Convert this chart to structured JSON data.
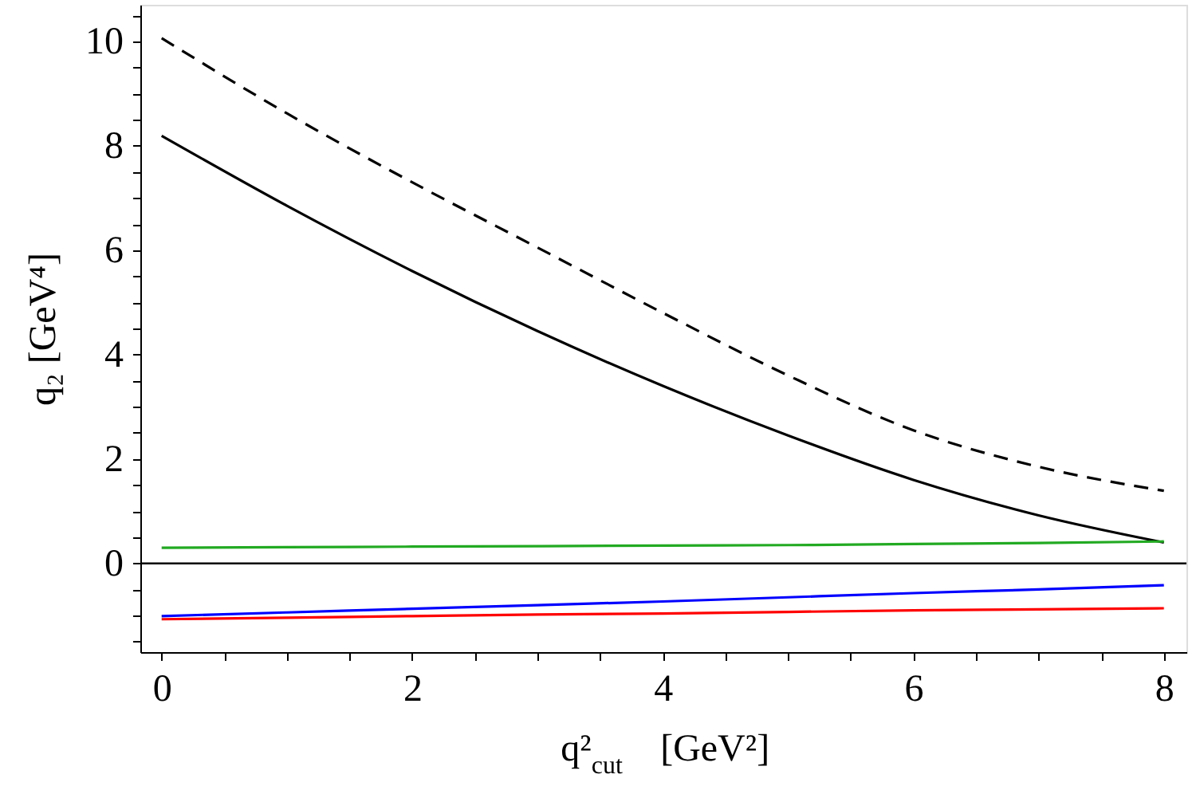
{
  "chart_data": {
    "type": "line",
    "xlabel": "q²$_{cut}$   [GeV²]",
    "ylabel": "q₂   [GeV⁴]",
    "x": [
      0,
      1,
      2,
      3,
      4,
      5,
      6,
      7,
      8
    ],
    "series": [
      {
        "color": "#000000",
        "line_style": "dashed",
        "values": [
          10.06,
          8.62,
          7.3,
          6.05,
          4.8,
          3.6,
          2.55,
          1.85,
          1.39
        ]
      },
      {
        "color": "#000000",
        "values": [
          8.19,
          6.85,
          5.6,
          4.45,
          3.4,
          2.45,
          1.6,
          0.92,
          0.4
        ]
      },
      {
        "color": "#22aa22",
        "values": [
          0.3,
          0.31,
          0.32,
          0.33,
          0.34,
          0.35,
          0.37,
          0.39,
          0.42
        ]
      },
      {
        "color": "#0000ff",
        "values": [
          -1.01,
          -0.94,
          -0.87,
          -0.8,
          -0.73,
          -0.65,
          -0.57,
          -0.5,
          -0.42
        ]
      },
      {
        "color": "#ff0000",
        "values": [
          -1.07,
          -1.04,
          -1.01,
          -0.98,
          -0.96,
          -0.93,
          -0.9,
          -0.88,
          -0.86
        ]
      }
    ],
    "xlim": [
      -0.17,
      8.18
    ],
    "ylim": [
      -1.7,
      10.7
    ],
    "xticks": [
      0,
      {
        "value": 0.5,
        "label": null
      },
      {
        "value": 1,
        "label": null
      },
      {
        "value": 1.5,
        "label": null
      },
      2,
      {
        "value": 2.5,
        "label": null
      },
      {
        "value": 3,
        "label": null
      },
      {
        "value": 3.5,
        "label": null
      },
      4,
      {
        "value": 4.5,
        "label": null
      },
      {
        "value": 5,
        "label": null
      },
      {
        "value": 5.5,
        "label": null
      },
      6,
      {
        "value": 6.5,
        "label": null
      },
      {
        "value": 7,
        "label": null
      },
      {
        "value": 7.5,
        "label": null
      },
      8
    ],
    "yticks": [
      {
        "value": -1.5,
        "label": null
      },
      {
        "value": -1,
        "label": null
      },
      {
        "value": -0.5,
        "label": null
      },
      0,
      {
        "value": 0.5,
        "label": null
      },
      {
        "value": 1,
        "label": null
      },
      {
        "value": 1.5,
        "label": null
      },
      2,
      {
        "value": 2.5,
        "label": null
      },
      {
        "value": 3,
        "label": null
      },
      {
        "value": 3.5,
        "label": null
      },
      4,
      {
        "value": 4.5,
        "label": null
      },
      {
        "value": 5,
        "label": null
      },
      {
        "value": 5.5,
        "label": null
      },
      6,
      {
        "value": 6.5,
        "label": null
      },
      {
        "value": 7,
        "label": null
      },
      {
        "value": 7.5,
        "label": null
      },
      8,
      {
        "value": 8.5,
        "label": null
      },
      {
        "value": 9,
        "label": null
      },
      {
        "value": 9.5,
        "label": null
      },
      10,
      {
        "value": 10.5,
        "label": null
      }
    ],
    "ref_lines": [
      {
        "axis": "y",
        "value": 0,
        "color": "#000000"
      }
    ],
    "grid": false,
    "marker": "none",
    "line_style": "solid"
  }
}
